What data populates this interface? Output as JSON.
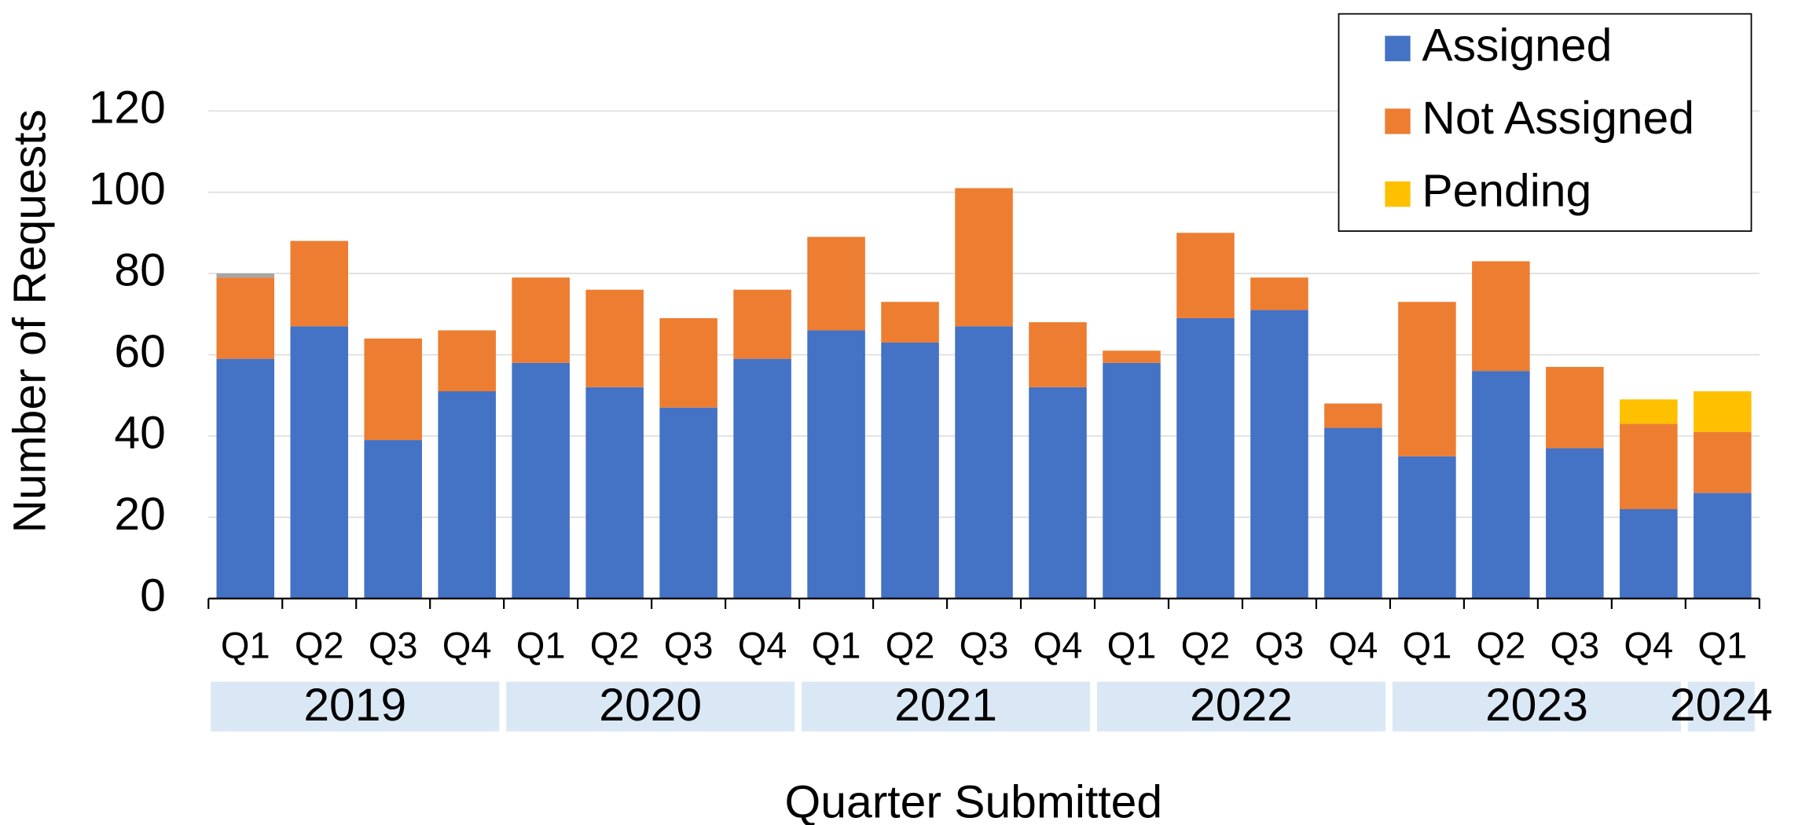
{
  "chart_data": {
    "type": "stacked_bar",
    "x_label": "Quarter Submitted",
    "y_label": "Number of Requests",
    "categories": [
      "Q1",
      "Q2",
      "Q3",
      "Q4",
      "Q1",
      "Q2",
      "Q3",
      "Q4",
      "Q1",
      "Q2",
      "Q3",
      "Q4",
      "Q1",
      "Q2",
      "Q3",
      "Q4",
      "Q1",
      "Q2",
      "Q3",
      "Q4",
      "Q1"
    ],
    "year_groups": [
      "2019",
      "2020",
      "2021",
      "2022",
      "2023",
      "2024"
    ],
    "series": [
      {
        "name": "Assigned",
        "color": "#4472c4",
        "values": [
          59,
          67,
          39,
          51,
          58,
          52,
          47,
          59,
          66,
          63,
          67,
          52,
          58,
          69,
          71,
          42,
          35,
          56,
          37,
          22,
          26
        ]
      },
      {
        "name": "Not Assigned",
        "color": "#ed7d31",
        "values": [
          20,
          21,
          25,
          15,
          21,
          24,
          22,
          17,
          23,
          10,
          34,
          16,
          3,
          21,
          8,
          6,
          38,
          27,
          20,
          21,
          15
        ]
      },
      {
        "name": "Pending",
        "color": "#ffc000",
        "values": [
          null,
          null,
          null,
          null,
          null,
          null,
          null,
          null,
          null,
          null,
          null,
          null,
          null,
          null,
          null,
          null,
          null,
          null,
          null,
          6,
          10
        ]
      },
      {
        "name": null,
        "color": "#a5a5a5",
        "values": [
          1,
          null,
          null,
          null,
          null,
          null,
          null,
          null,
          null,
          null,
          null,
          null,
          null,
          null,
          null,
          null,
          null,
          null,
          null,
          null,
          null
        ]
      }
    ],
    "ylim": [
      0,
      120
    ],
    "yticks": [
      0,
      20,
      40,
      60,
      80,
      100,
      120
    ],
    "grid": true,
    "legend": "top-right"
  }
}
